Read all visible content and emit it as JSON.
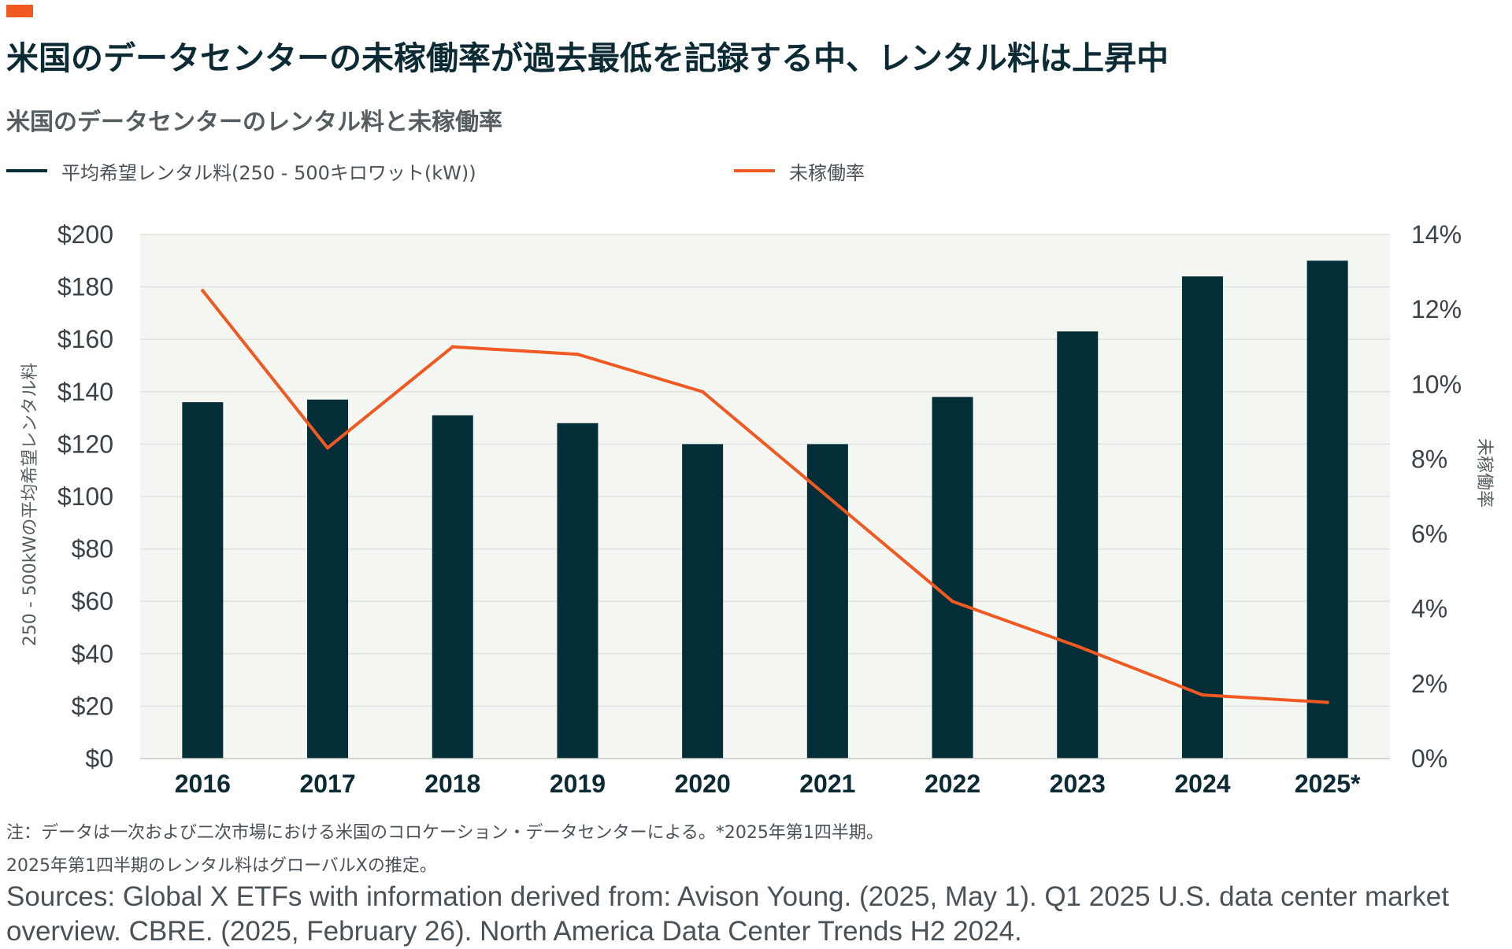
{
  "header": {
    "title": "米国のデータセンターの未稼働率が過去最低を記録する中、レンタル料は上昇中",
    "subtitle": "米国のデータセンターのレンタル料と未稼働率"
  },
  "legend": {
    "bar_label": "平均希望レンタル料(250 - 500キロワット(kW))",
    "line_label": "未稼働率"
  },
  "colors": {
    "bar": "#032d37",
    "line": "#f05a22",
    "plot_bg": "#f4f6f2",
    "grid": "#dfe3df"
  },
  "chart_data": {
    "type": "bar+line",
    "categories": [
      "2016",
      "2017",
      "2018",
      "2019",
      "2020",
      "2021",
      "2022",
      "2023",
      "2024",
      "2025*"
    ],
    "series": [
      {
        "name": "平均希望レンタル料(250 - 500キロワット(kW))",
        "type": "bar",
        "axis": "left",
        "values": [
          136,
          137,
          131,
          128,
          120,
          120,
          138,
          163,
          184,
          190
        ]
      },
      {
        "name": "未稼働率",
        "type": "line",
        "axis": "right",
        "values": [
          12.5,
          8.3,
          11.0,
          10.8,
          9.8,
          7.0,
          4.2,
          3.0,
          1.7,
          1.5
        ]
      }
    ],
    "y_left": {
      "label": "250 - 500kWの平均希望レンタル料",
      "range": [
        0,
        200
      ],
      "ticks": [
        "$0",
        "$20",
        "$40",
        "$60",
        "$80",
        "$100",
        "$120",
        "$140",
        "$160",
        "$180",
        "$200"
      ]
    },
    "y_right": {
      "label": "未稼働率",
      "range": [
        0,
        14
      ],
      "ticks": [
        "0%",
        "2%",
        "4%",
        "6%",
        "8%",
        "10%",
        "12%",
        "14%"
      ]
    },
    "grid": true,
    "legend_position": "top"
  },
  "notes": {
    "note1": "注：データは一次および二次市場における米国のコロケーション・データセンターによる。*2025年第1四半期。",
    "note2": "2025年第1四半期のレンタル料はグローバルXの推定。",
    "sources": "Sources: Global X ETFs with information derived from: Avison Young. (2025, May 1). Q1 2025 U.S. data center market overview. CBRE. (2025, February 26). North America Data Center Trends H2 2024."
  }
}
